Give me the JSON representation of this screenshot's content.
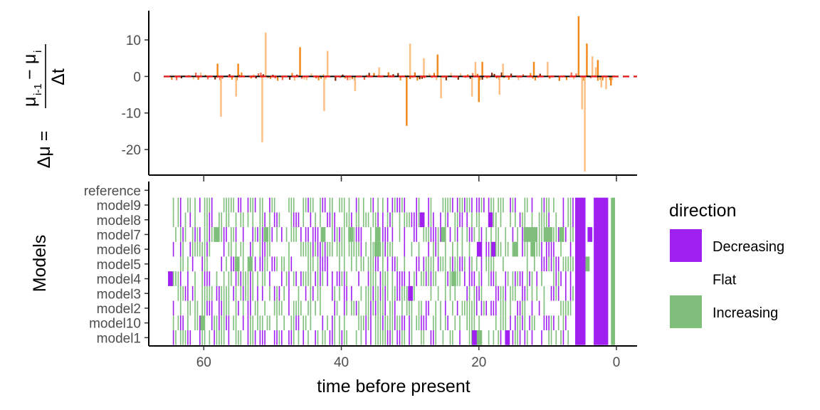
{
  "chart_data": [
    {
      "type": "line",
      "ylabel": "Δμ = (μi-1 − μi) / Δt",
      "ylabel_parts": {
        "lhs": "Δμ =",
        "num_mu1": "μ",
        "num_sub1": "i-1",
        "num_minus": "−",
        "num_mu2": "μ",
        "num_sub2": "i",
        "den": "Δt"
      },
      "yticks": [
        "10",
        "0",
        "-10",
        "-20"
      ],
      "ytick_values": [
        10,
        0,
        -10,
        -20
      ],
      "ylim": [
        -27,
        18
      ],
      "xlim": [
        68,
        -3
      ],
      "reference_line": {
        "y": 0,
        "style": "dashed",
        "color": "#e31a1c"
      },
      "series_colors": [
        "#fdbf84",
        "#f28a1e",
        "#e8740c",
        "#7f2704",
        "#fb6a4a"
      ],
      "spikes": [
        {
          "x": 58.0,
          "y": 3.5
        },
        {
          "x": 57.5,
          "y": -11
        },
        {
          "x": 55.3,
          "y": -5.5
        },
        {
          "x": 55.0,
          "y": 3.5
        },
        {
          "x": 51.5,
          "y": -18
        },
        {
          "x": 51.0,
          "y": 12
        },
        {
          "x": 46.0,
          "y": 8
        },
        {
          "x": 42.5,
          "y": -9.5
        },
        {
          "x": 42.0,
          "y": 7
        },
        {
          "x": 30.5,
          "y": -13.5
        },
        {
          "x": 30.0,
          "y": 9
        },
        {
          "x": 28.0,
          "y": 5
        },
        {
          "x": 26.0,
          "y": 6
        },
        {
          "x": 25.5,
          "y": -6
        },
        {
          "x": 20.5,
          "y": 4
        },
        {
          "x": 19.5,
          "y": 4
        },
        {
          "x": 17.0,
          "y": -5
        },
        {
          "x": 16.5,
          "y": 3.5
        },
        {
          "x": 12.0,
          "y": 4
        },
        {
          "x": 10.0,
          "y": 4
        },
        {
          "x": 21.0,
          "y": -5.5
        },
        {
          "x": 20.0,
          "y": -7
        },
        {
          "x": 38.0,
          "y": -4
        },
        {
          "x": 34.5,
          "y": 2.5
        },
        {
          "x": 5.5,
          "y": 16.5
        },
        {
          "x": 5.0,
          "y": -9
        },
        {
          "x": 4.6,
          "y": -26
        },
        {
          "x": 4.3,
          "y": 9
        },
        {
          "x": 3.5,
          "y": 5.5
        },
        {
          "x": 3.0,
          "y": 2.5
        },
        {
          "x": 2.7,
          "y": 4.5
        },
        {
          "x": 2.2,
          "y": -3
        },
        {
          "x": 1.5,
          "y": -3.5
        },
        {
          "x": 0.8,
          "y": -2.5
        }
      ]
    },
    {
      "type": "heatmap",
      "xlabel": "time before present",
      "ylabel": "Models",
      "rows": [
        "reference",
        "model9",
        "model8",
        "model7",
        "model6",
        "model5",
        "model4",
        "model3",
        "model2",
        "model10",
        "model1"
      ],
      "xticks": [
        "60",
        "40",
        "20",
        "0"
      ],
      "xtick_values": [
        60,
        40,
        20,
        0
      ],
      "xlim": [
        68,
        -3
      ],
      "categories": [
        "Decreasing",
        "Flat",
        "Increasing"
      ],
      "category_colors": {
        "Decreasing": "#a020f0",
        "Flat": "#ffffff",
        "Increasing": "#7fbf7b"
      },
      "x_start": 64.5,
      "x_end": 0.2,
      "step": 0.35,
      "blocks": [
        {
          "row": "model4",
          "x0": 65.2,
          "x1": 64.5,
          "dir": "Decreasing"
        },
        {
          "row": "model7",
          "x0": 58.5,
          "x1": 57.7,
          "dir": "Increasing"
        },
        {
          "row": "model5",
          "x0": 55.5,
          "x1": 54.8,
          "dir": "Increasing"
        },
        {
          "row": "model5",
          "x0": 53.5,
          "x1": 52.9,
          "dir": "Increasing"
        },
        {
          "row": "model7",
          "x0": 51.3,
          "x1": 50.6,
          "dir": "Increasing"
        },
        {
          "row": "model10",
          "x0": 60.5,
          "x1": 59.8,
          "dir": "Increasing"
        },
        {
          "row": "model7",
          "x0": 43.0,
          "x1": 42.3,
          "dir": "Increasing"
        },
        {
          "row": "model7",
          "x0": 39.0,
          "x1": 38.3,
          "dir": "Increasing"
        },
        {
          "row": "model7",
          "x0": 35.0,
          "x1": 34.3,
          "dir": "Increasing"
        },
        {
          "row": "model6",
          "x0": 35.2,
          "x1": 34.4,
          "dir": "Increasing"
        },
        {
          "row": "model3",
          "x0": 30.3,
          "x1": 29.6,
          "dir": "Decreasing"
        },
        {
          "row": "model8",
          "x0": 28.6,
          "x1": 27.9,
          "dir": "Decreasing"
        },
        {
          "row": "model7",
          "x0": 25.5,
          "x1": 24.8,
          "dir": "Increasing"
        },
        {
          "row": "model4",
          "x0": 24.0,
          "x1": 23.3,
          "dir": "Increasing"
        },
        {
          "row": "model6",
          "x0": 20.3,
          "x1": 19.6,
          "dir": "Decreasing"
        },
        {
          "row": "model8",
          "x0": 18.6,
          "x1": 18.0,
          "dir": "Decreasing"
        },
        {
          "row": "model6",
          "x0": 18.2,
          "x1": 17.6,
          "dir": "Decreasing"
        },
        {
          "row": "model1",
          "x0": 21.0,
          "x1": 20.3,
          "dir": "Decreasing"
        },
        {
          "row": "model1",
          "x0": 20.3,
          "x1": 19.6,
          "dir": "Increasing"
        },
        {
          "row": "model1",
          "x0": 16.2,
          "x1": 15.5,
          "dir": "Decreasing"
        },
        {
          "row": "model6",
          "x0": 15.0,
          "x1": 14.3,
          "dir": "Increasing"
        },
        {
          "row": "model7",
          "x0": 13.5,
          "x1": 11.5,
          "dir": "Increasing"
        },
        {
          "row": "model6",
          "x0": 12.5,
          "x1": 11.8,
          "dir": "Increasing"
        },
        {
          "row": "model7",
          "x0": 10.5,
          "x1": 9.3,
          "dir": "Increasing"
        },
        {
          "row": "model7",
          "x0": 8.3,
          "x1": 7.6,
          "dir": "Increasing"
        },
        {
          "row": "model7",
          "x0": 4.2,
          "x1": 3.5,
          "dir": "Decreasing"
        },
        {
          "row": "model5",
          "x0": 4.6,
          "x1": 3.9,
          "dir": "Increasing"
        }
      ],
      "solid_bands": [
        {
          "x0": 6.0,
          "x1": 4.5,
          "dir": "Decreasing"
        },
        {
          "x0": 3.3,
          "x1": 1.2,
          "dir": "Decreasing"
        },
        {
          "x0": 0.8,
          "x1": 0.2,
          "dir": "Increasing"
        }
      ]
    }
  ],
  "legend": {
    "title": "direction",
    "items": [
      {
        "label": "Decreasing",
        "color": "#a020f0"
      },
      {
        "label": "Flat",
        "color": "#ffffff"
      },
      {
        "label": "Increasing",
        "color": "#7fbf7b"
      }
    ]
  }
}
